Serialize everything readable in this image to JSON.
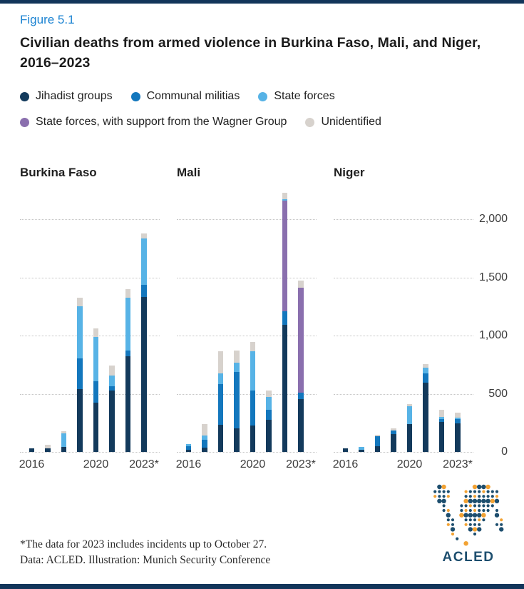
{
  "figure_label": "Figure 5.1",
  "title": "Civilian deaths from armed violence in Burkina Faso, Mali, and Niger, 2016–2023",
  "legend": {
    "items": [
      {
        "key": "jihadist",
        "label": "Jihadist groups",
        "color": "#133a5c"
      },
      {
        "key": "communal",
        "label": "Communal militias",
        "color": "#1377bd"
      },
      {
        "key": "state",
        "label": "State forces",
        "color": "#57b3e6"
      },
      {
        "key": "wagner",
        "label": "State forces, with support from the Wagner Group",
        "color": "#8a6fae"
      },
      {
        "key": "unidentified",
        "label": "Unidentified",
        "color": "#d7d2cd"
      }
    ]
  },
  "chart_data": {
    "type": "bar",
    "subtype": "stacked",
    "title": "Civilian deaths from armed violence in Burkina Faso, Mali, and Niger, 2016–2023",
    "ylabel": "Civilian deaths",
    "ylim": [
      0,
      2240
    ],
    "grid": true,
    "legend_position": "top",
    "y_ticks": [
      {
        "value": 0,
        "label": "0"
      },
      {
        "value": 500,
        "label": "500"
      },
      {
        "value": 1000,
        "label": "1,000"
      },
      {
        "value": 1500,
        "label": "1,500"
      },
      {
        "value": 2000,
        "label": "2,000"
      }
    ],
    "x_tick_labels": [
      {
        "label": "2016",
        "barIndex": 0
      },
      {
        "label": "2020",
        "barIndex": 4
      },
      {
        "label": "2023*",
        "barIndex": 7
      }
    ],
    "categories": [
      "2016",
      "2017",
      "2018",
      "2019",
      "2020",
      "2021",
      "2022",
      "2023"
    ],
    "panels": [
      {
        "title": "Burkina Faso",
        "bars": [
          {
            "year": "2016",
            "segments": [
              [
                "jihadist",
                30
              ]
            ]
          },
          {
            "year": "2017",
            "segments": [
              [
                "jihadist",
                30
              ],
              [
                "unidentified",
                30
              ]
            ]
          },
          {
            "year": "2018",
            "segments": [
              [
                "jihadist",
                45
              ],
              [
                "state",
                115
              ],
              [
                "unidentified",
                15
              ]
            ]
          },
          {
            "year": "2019",
            "segments": [
              [
                "jihadist",
                540
              ],
              [
                "communal",
                265
              ],
              [
                "state",
                445
              ],
              [
                "unidentified",
                75
              ]
            ]
          },
          {
            "year": "2020",
            "segments": [
              [
                "jihadist",
                425
              ],
              [
                "communal",
                185
              ],
              [
                "state",
                375
              ],
              [
                "unidentified",
                75
              ]
            ]
          },
          {
            "year": "2021",
            "segments": [
              [
                "jihadist",
                530
              ],
              [
                "communal",
                35
              ],
              [
                "state",
                90
              ],
              [
                "unidentified",
                90
              ]
            ]
          },
          {
            "year": "2022",
            "segments": [
              [
                "jihadist",
                820
              ],
              [
                "communal",
                50
              ],
              [
                "state",
                455
              ],
              [
                "unidentified",
                75
              ]
            ]
          },
          {
            "year": "2023",
            "segments": [
              [
                "jihadist",
                1330
              ],
              [
                "communal",
                105
              ],
              [
                "state",
                400
              ],
              [
                "unidentified",
                45
              ]
            ]
          }
        ]
      },
      {
        "title": "Mali",
        "bars": [
          {
            "year": "2016",
            "segments": [
              [
                "jihadist",
                20
              ],
              [
                "communal",
                30
              ],
              [
                "state",
                20
              ]
            ]
          },
          {
            "year": "2017",
            "segments": [
              [
                "jihadist",
                35
              ],
              [
                "communal",
                70
              ],
              [
                "state",
                35
              ],
              [
                "unidentified",
                100
              ]
            ]
          },
          {
            "year": "2018",
            "segments": [
              [
                "jihadist",
                235
              ],
              [
                "communal",
                345
              ],
              [
                "state",
                95
              ],
              [
                "unidentified",
                190
              ]
            ]
          },
          {
            "year": "2019",
            "segments": [
              [
                "jihadist",
                200
              ],
              [
                "communal",
                485
              ],
              [
                "state",
                85
              ],
              [
                "unidentified",
                100
              ]
            ]
          },
          {
            "year": "2020",
            "segments": [
              [
                "jihadist",
                230
              ],
              [
                "communal",
                300
              ],
              [
                "state",
                335
              ],
              [
                "unidentified",
                80
              ]
            ]
          },
          {
            "year": "2021",
            "segments": [
              [
                "jihadist",
                275
              ],
              [
                "communal",
                90
              ],
              [
                "state",
                105
              ],
              [
                "unidentified",
                55
              ]
            ]
          },
          {
            "year": "2022",
            "segments": [
              [
                "jihadist",
                1090
              ],
              [
                "communal",
                120
              ],
              [
                "wagner",
                950
              ],
              [
                "state",
                10
              ],
              [
                "unidentified",
                60
              ]
            ]
          },
          {
            "year": "2023",
            "segments": [
              [
                "jihadist",
                455
              ],
              [
                "communal",
                55
              ],
              [
                "wagner",
                900
              ],
              [
                "unidentified",
                60
              ]
            ]
          }
        ]
      },
      {
        "title": "Niger",
        "bars": [
          {
            "year": "2016",
            "segments": [
              [
                "jihadist",
                30
              ]
            ]
          },
          {
            "year": "2017",
            "segments": [
              [
                "jihadist",
                20
              ],
              [
                "state",
                20
              ]
            ]
          },
          {
            "year": "2018",
            "segments": [
              [
                "jihadist",
                50
              ],
              [
                "communal",
                85
              ],
              [
                "unidentified",
                15
              ]
            ]
          },
          {
            "year": "2019",
            "segments": [
              [
                "jihadist",
                155
              ],
              [
                "communal",
                30
              ],
              [
                "unidentified",
                15
              ]
            ]
          },
          {
            "year": "2020",
            "segments": [
              [
                "jihadist",
                240
              ],
              [
                "state",
                150
              ],
              [
                "unidentified",
                20
              ]
            ]
          },
          {
            "year": "2021",
            "segments": [
              [
                "jihadist",
                595
              ],
              [
                "communal",
                80
              ],
              [
                "state",
                50
              ],
              [
                "unidentified",
                30
              ]
            ]
          },
          {
            "year": "2022",
            "segments": [
              [
                "jihadist",
                255
              ],
              [
                "communal",
                30
              ],
              [
                "state",
                15
              ],
              [
                "unidentified",
                60
              ]
            ]
          },
          {
            "year": "2023",
            "segments": [
              [
                "jihadist",
                245
              ],
              [
                "communal",
                35
              ],
              [
                "state",
                15
              ],
              [
                "unidentified",
                40
              ]
            ]
          }
        ]
      }
    ]
  },
  "footnote": {
    "line1": "*The data for 2023 includes incidents up to October 27.",
    "line2": "Data: ACLED. Illustration: Munich Security Conference"
  },
  "logo": {
    "label": "ACLED",
    "navy": "#1d4e6e",
    "orange": "#f2a233"
  },
  "colors": {
    "accent_strip": "#12355a",
    "figure_label": "#1b83d2",
    "gridline": "#c6c6c6",
    "axis_text": "#3c3c3c"
  }
}
